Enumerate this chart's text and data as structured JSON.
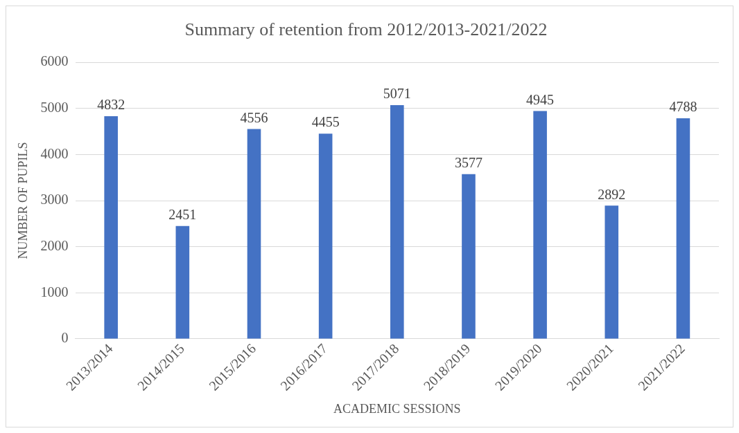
{
  "chart_data": {
    "type": "bar",
    "title": "Summary of retention from 2012/2013-2021/2022",
    "xlabel": "ACADEMIC SESSIONS",
    "ylabel": "NUMBER OF PUPILS",
    "categories": [
      "2013/2014",
      "2014/2015",
      "2015/2016",
      "2016/2017",
      "2017/2018",
      "2018/2019",
      "2019/2020",
      "2020/2021",
      "2021/2022"
    ],
    "values": [
      4832,
      2451,
      4556,
      4455,
      5071,
      3577,
      4945,
      2892,
      4788
    ],
    "color": "#4472c4",
    "ylim": [
      0,
      6000
    ],
    "yticks": [
      0,
      1000,
      2000,
      3000,
      4000,
      5000,
      6000
    ],
    "grid": "y",
    "data_labels": true
  }
}
